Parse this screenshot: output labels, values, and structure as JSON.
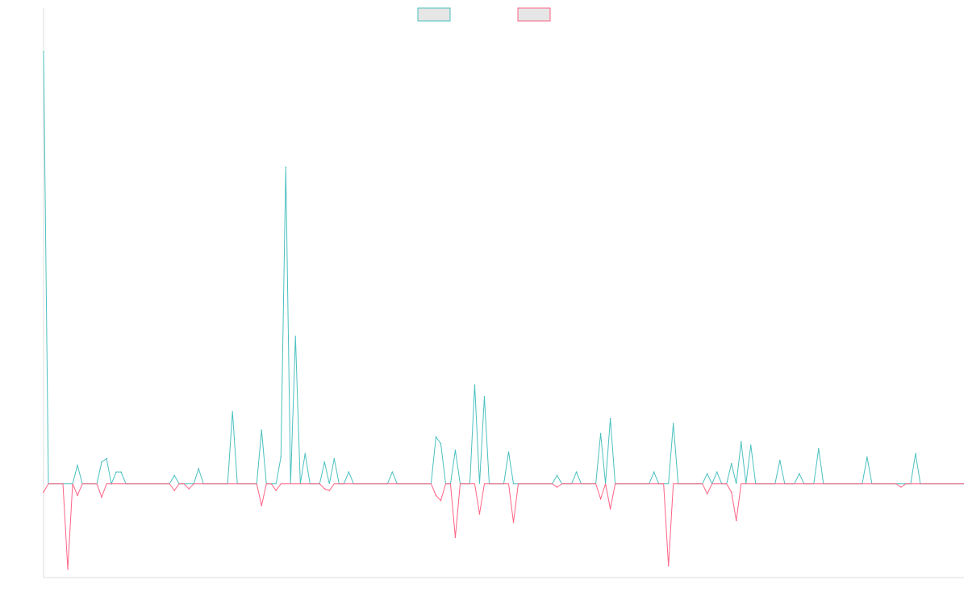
{
  "colors": {
    "series_a": "#4bc0c0",
    "series_b": "#ff6384",
    "legend_fill": "#e6e6e6",
    "axis": "#dddddd"
  },
  "legend": {
    "position": "top-center",
    "items": [
      {
        "label": "",
        "color": "#4bc0c0"
      },
      {
        "label": "",
        "color": "#ff6384"
      }
    ]
  },
  "chart_data": {
    "type": "line",
    "title": "",
    "xlabel": "",
    "ylabel": "",
    "grid": false,
    "ylim": [
      -0.28,
      1.42
    ],
    "x_count": 191,
    "series": [
      {
        "name": "",
        "color": "#4bc0c0",
        "points": [
          [
            0,
            1.29
          ],
          [
            1,
            0.02
          ],
          [
            3,
            0.0
          ],
          [
            4,
            0.01
          ],
          [
            6,
            0.0
          ],
          [
            7,
            0.0
          ],
          [
            9,
            0.0
          ],
          [
            10,
            0.0
          ],
          [
            11,
            0.0
          ],
          [
            12,
            0.0
          ],
          [
            14,
            0.0
          ],
          [
            15,
            0.01
          ],
          [
            16,
            0.0
          ],
          [
            17,
            0.0
          ],
          [
            19,
            0.0
          ],
          [
            20,
            0.01
          ],
          [
            21,
            0.0
          ],
          [
            23,
            0.0
          ],
          [
            24,
            0.0
          ],
          [
            25,
            0.0
          ],
          [
            27,
            0.0
          ],
          [
            28,
            0.0
          ],
          [
            29,
            0.0
          ],
          [
            30,
            0.0
          ],
          [
            31,
            0.0
          ],
          [
            32,
            0.0
          ],
          [
            34,
            0.0
          ],
          [
            35,
            0.0
          ],
          [
            36,
            0.0
          ],
          [
            38,
            0.0
          ],
          [
            39,
            0.0
          ],
          [
            40,
            0.0
          ],
          [
            43,
            0.0
          ],
          [
            44,
            0.0
          ],
          [
            45,
            0.0
          ],
          [
            46,
            0.22
          ],
          [
            47,
            0.0
          ],
          [
            49,
            0.0
          ],
          [
            50,
            0.0
          ],
          [
            51,
            0.0
          ],
          [
            52,
            0.0
          ],
          [
            53,
            0.0
          ],
          [
            54,
            0.0
          ],
          [
            55,
            0.0
          ],
          [
            56,
            0.0
          ],
          [
            57,
            0.0
          ],
          [
            58,
            0.0
          ],
          [
            59,
            0.0
          ],
          [
            60,
            0.0
          ],
          [
            62,
            0.0
          ],
          [
            63,
            0.0
          ],
          [
            64,
            0.0
          ],
          [
            65,
            0.0
          ],
          [
            66,
            0.0
          ],
          [
            67,
            0.0
          ],
          [
            68,
            0.0
          ],
          [
            69,
            0.0
          ],
          [
            70,
            0.0
          ],
          [
            71,
            0.0
          ],
          [
            72,
            0.0
          ],
          [
            73,
            0.0
          ],
          [
            74,
            0.0
          ],
          [
            75,
            0.0
          ],
          [
            76,
            0.0
          ],
          [
            77,
            0.0
          ],
          [
            78,
            0.0
          ],
          [
            79,
            0.0
          ],
          [
            80,
            0.0
          ],
          [
            81,
            0.0
          ],
          [
            82,
            0.0
          ],
          [
            83,
            0.0
          ],
          [
            84,
            0.0
          ],
          [
            85,
            0.0
          ],
          [
            86,
            0.0
          ],
          [
            87,
            0.0
          ],
          [
            88,
            0.0
          ],
          [
            89,
            0.0
          ],
          [
            90,
            0.0
          ],
          [
            91,
            0.0
          ],
          [
            92,
            0.0
          ],
          [
            93,
            0.0
          ],
          [
            94,
            0.0
          ],
          [
            95,
            0.0
          ],
          [
            96,
            0.0
          ],
          [
            97,
            0.0
          ],
          [
            98,
            0.0
          ],
          [
            99,
            0.0
          ],
          [
            100,
            0.0
          ],
          [
            101,
            0.0
          ],
          [
            102,
            0.0
          ],
          [
            103,
            0.0
          ],
          [
            104,
            0.0
          ],
          [
            105,
            0.0
          ],
          [
            106,
            0.0
          ],
          [
            107,
            0.0
          ],
          [
            108,
            0.0
          ],
          [
            109,
            0.0
          ],
          [
            110,
            0.0
          ],
          [
            111,
            0.0
          ],
          [
            112,
            0.0
          ],
          [
            113,
            0.0
          ],
          [
            114,
            0.0
          ],
          [
            115,
            0.0
          ],
          [
            116,
            0.0
          ],
          [
            117,
            0.0
          ],
          [
            118,
            0.0
          ],
          [
            119,
            0.0
          ],
          [
            120,
            0.0
          ],
          [
            121,
            0.0
          ],
          [
            122,
            0.0
          ],
          [
            123,
            0.0
          ],
          [
            124,
            0.0
          ],
          [
            125,
            0.0
          ],
          [
            126,
            0.0
          ],
          [
            127,
            0.0
          ],
          [
            128,
            0.0
          ],
          [
            129,
            0.0
          ],
          [
            130,
            0.0
          ],
          [
            131,
            0.0
          ],
          [
            132,
            0.0
          ],
          [
            133,
            0.0
          ],
          [
            134,
            0.0
          ],
          [
            135,
            0.0
          ],
          [
            136,
            0.0
          ],
          [
            137,
            0.0
          ],
          [
            138,
            0.0
          ],
          [
            139,
            0.0
          ],
          [
            140,
            0.0
          ],
          [
            141,
            0.0
          ],
          [
            142,
            0.0
          ],
          [
            143,
            0.0
          ],
          [
            144,
            0.0
          ],
          [
            145,
            0.0
          ],
          [
            146,
            0.0
          ],
          [
            147,
            0.0
          ],
          [
            148,
            0.0
          ],
          [
            149,
            0.0
          ],
          [
            150,
            0.0
          ],
          [
            151,
            0.0
          ],
          [
            152,
            0.0
          ],
          [
            153,
            0.0
          ],
          [
            154,
            0.0
          ],
          [
            155,
            0.0
          ],
          [
            156,
            0.0
          ],
          [
            157,
            0.0
          ],
          [
            158,
            0.0
          ],
          [
            159,
            0.0
          ],
          [
            160,
            0.0
          ],
          [
            161,
            0.0
          ],
          [
            162,
            0.0
          ],
          [
            163,
            0.0
          ],
          [
            164,
            0.0
          ],
          [
            165,
            0.0
          ],
          [
            166,
            0.0
          ],
          [
            167,
            0.0
          ],
          [
            168,
            0.0
          ],
          [
            169,
            0.0
          ],
          [
            170,
            0.0
          ],
          [
            171,
            0.0
          ],
          [
            172,
            0.0
          ],
          [
            173,
            0.0
          ],
          [
            174,
            0.0
          ],
          [
            175,
            0.0
          ],
          [
            176,
            0.0
          ],
          [
            177,
            0.0
          ],
          [
            178,
            0.0
          ],
          [
            179,
            0.0
          ],
          [
            180,
            0.0
          ],
          [
            181,
            0.0
          ],
          [
            182,
            0.0
          ],
          [
            183,
            0.0
          ],
          [
            184,
            0.0
          ],
          [
            185,
            0.0
          ],
          [
            186,
            0.0
          ],
          [
            187,
            0.0
          ],
          [
            188,
            0.0
          ],
          [
            189,
            0.0
          ],
          [
            190,
            0.0
          ]
        ],
        "peaks": [
          [
            0,
            1.29
          ],
          [
            7,
            0.055
          ],
          [
            12,
            0.065
          ],
          [
            13,
            0.075
          ],
          [
            15,
            0.035
          ],
          [
            16,
            0.035
          ],
          [
            27,
            0.025
          ],
          [
            32,
            0.045
          ],
          [
            39,
            0.215
          ],
          [
            45,
            0.16
          ],
          [
            49,
            0.08
          ],
          [
            50,
            0.945
          ],
          [
            52,
            0.44
          ],
          [
            54,
            0.09
          ],
          [
            58,
            0.065
          ],
          [
            60,
            0.075
          ],
          [
            63,
            0.035
          ],
          [
            72,
            0.035
          ],
          [
            81,
            0.14
          ],
          [
            82,
            0.12
          ],
          [
            85,
            0.1
          ],
          [
            89,
            0.295
          ],
          [
            91,
            0.26
          ],
          [
            96,
            0.095
          ],
          [
            106,
            0.025
          ],
          [
            110,
            0.035
          ],
          [
            115,
            0.15
          ],
          [
            117,
            0.195
          ],
          [
            126,
            0.035
          ],
          [
            130,
            0.18
          ],
          [
            137,
            0.03
          ],
          [
            139,
            0.035
          ],
          [
            142,
            0.06
          ],
          [
            144,
            0.125
          ],
          [
            146,
            0.115
          ],
          [
            152,
            0.07
          ],
          [
            156,
            0.03
          ],
          [
            160,
            0.105
          ],
          [
            170,
            0.08
          ],
          [
            180,
            0.09
          ]
        ]
      },
      {
        "name": "",
        "color": "#ff6384",
        "points": [],
        "peaks": [
          [
            0,
            -0.025
          ],
          [
            5,
            -0.255
          ],
          [
            7,
            -0.035
          ],
          [
            12,
            -0.04
          ],
          [
            27,
            -0.02
          ],
          [
            30,
            -0.015
          ],
          [
            45,
            -0.065
          ],
          [
            48,
            -0.02
          ],
          [
            58,
            -0.015
          ],
          [
            59,
            -0.02
          ],
          [
            81,
            -0.035
          ],
          [
            82,
            -0.05
          ],
          [
            85,
            -0.16
          ],
          [
            90,
            -0.09
          ],
          [
            97,
            -0.115
          ],
          [
            106,
            -0.01
          ],
          [
            115,
            -0.045
          ],
          [
            117,
            -0.075
          ],
          [
            129,
            -0.245
          ],
          [
            137,
            -0.03
          ],
          [
            142,
            -0.025
          ],
          [
            143,
            -0.11
          ],
          [
            177,
            -0.01
          ]
        ]
      }
    ]
  }
}
